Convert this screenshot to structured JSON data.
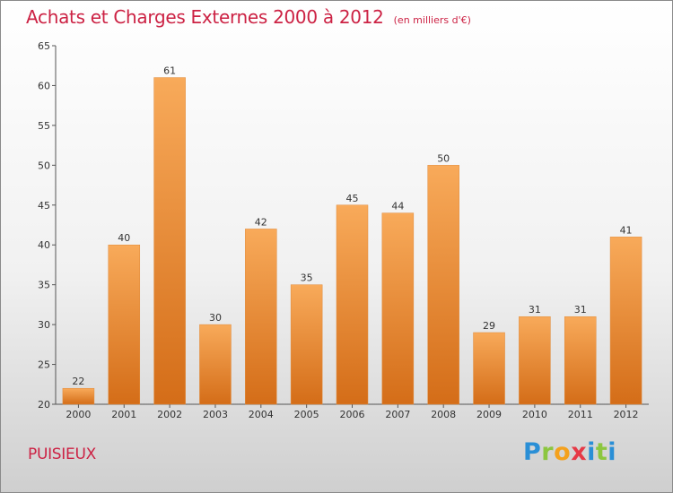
{
  "header": {
    "title": "Achats et Charges Externes 2000 à 2012",
    "subtitle": "(en milliers d'€)"
  },
  "footer": {
    "town": "PUISIEUX",
    "logo_letters": [
      "P",
      "r",
      "o",
      "x",
      "i",
      "t",
      "i"
    ]
  },
  "colors": {
    "accent": "#cc2244",
    "bar_light": "#f8aa5a",
    "bar_dark": "#d46d18"
  },
  "chart_data": {
    "type": "bar",
    "title": "Achats et Charges Externes 2000 à 2012",
    "subtitle": "(en milliers d'€)",
    "xlabel": "",
    "ylabel": "",
    "categories": [
      "2000",
      "2001",
      "2002",
      "2003",
      "2004",
      "2005",
      "2006",
      "2007",
      "2008",
      "2009",
      "2010",
      "2011",
      "2012"
    ],
    "values": [
      22,
      40,
      61,
      30,
      42,
      35,
      45,
      44,
      50,
      29,
      31,
      31,
      41
    ],
    "ylim": [
      20,
      65
    ],
    "yticks": [
      20,
      25,
      30,
      35,
      40,
      45,
      50,
      55,
      60,
      65
    ],
    "grid": false,
    "data_labels": true
  }
}
